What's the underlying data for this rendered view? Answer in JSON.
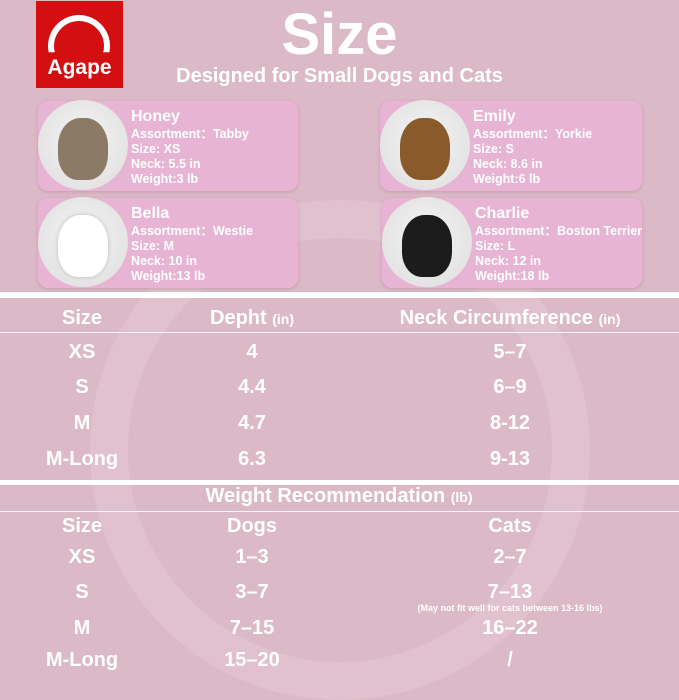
{
  "brand": {
    "logo_text": "Agape",
    "logo_color": "#d40f12"
  },
  "header": {
    "title": "Size",
    "subtitle": "Designed for Small Dogs and Cats"
  },
  "pets": [
    {
      "name": "Honey",
      "assortment": "Assortment：Tabby",
      "size": "Size: XS",
      "neck": "Neck: 5.5 in",
      "weight": "Weight:3 lb",
      "image": "tabby-kitten"
    },
    {
      "name": "Emily",
      "assortment": "Assortment：Yorkie",
      "size": "Size: S",
      "neck": "Neck: 8.6 in",
      "weight": "Weight:6 lb",
      "image": "yorkie"
    },
    {
      "name": "Bella",
      "assortment": "Assortment：Westie",
      "size": "Size: M",
      "neck": "Neck: 10 in",
      "weight": "Weight:13 lb",
      "image": "westie"
    },
    {
      "name": "Charlie",
      "assortment": "Assortment：Boston Terrier",
      "size": "Size: L",
      "neck": "Neck: 12 in",
      "weight": "Weight:18 lb",
      "image": "black-terrier"
    }
  ],
  "size_table": {
    "headers": [
      {
        "label": "Size",
        "unit": ""
      },
      {
        "label": "Depht",
        "unit": "(in)"
      },
      {
        "label": "Neck Circumference",
        "unit": "(in)"
      }
    ],
    "rows": [
      [
        "XS",
        "4",
        "5–7"
      ],
      [
        "S",
        "4.4",
        "6–9"
      ],
      [
        "M",
        "4.7",
        "8-12"
      ],
      [
        "M-Long",
        "6.3",
        "9-13"
      ]
    ]
  },
  "weight_table": {
    "title": "Weight Recommendation",
    "title_unit": "(lb)",
    "headers": [
      "Size",
      "Dogs",
      "Cats"
    ],
    "rows": [
      [
        "XS",
        "1–3",
        "2–7"
      ],
      [
        "S",
        "3–7",
        "7–13"
      ],
      [
        "M",
        "7–15",
        "16–22"
      ],
      [
        "M-Long",
        "15–20",
        "/"
      ]
    ],
    "note": "(May not fit well for cats between 13-16 lbs)"
  },
  "colors": {
    "background": "#dcb9c6",
    "card": "#e8b4d4",
    "text": "#ffffff"
  }
}
